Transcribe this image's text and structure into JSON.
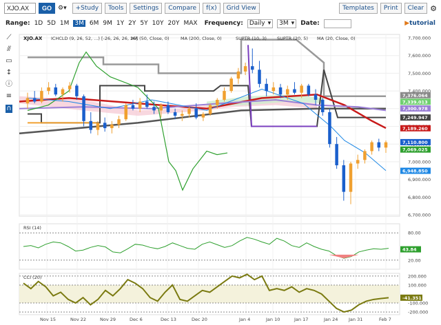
{
  "toolbar": {
    "symbol": "XJO.AX",
    "go": "GO",
    "buttons": [
      "+Study",
      "Tools",
      "Settings",
      "Compare",
      "f(x)",
      "Grid View"
    ],
    "right_buttons": [
      "Templates",
      "Print",
      "Clear"
    ]
  },
  "rangebar": {
    "range_label": "Range:",
    "ranges": [
      "1D",
      "5D",
      "1M",
      "3M",
      "6M",
      "9M",
      "1Y",
      "2Y",
      "5Y",
      "10Y",
      "20Y",
      "MAX"
    ],
    "active_range": "3M",
    "frequency_label": "Frequency:",
    "frequency_value": "Daily",
    "interval_value": "3M",
    "date_label": "Date:",
    "tutorial": "tutorial"
  },
  "legend": {
    "symbol": "XJO.AX",
    "items": [
      "ICHCLD (9, 26, 52, ...) [-26, 26, 26, 26]",
      "MA (50, Close, 0)",
      "MA (200, Close, 0)",
      "SUPTR (10, 3)",
      "SUPTR (20, 5)",
      "MA (20, Close, 0)"
    ]
  },
  "panes": {
    "rsi_label": "RSI (14)",
    "cci_label": "CCI (20)"
  },
  "chart_data": {
    "type": "line",
    "price_axis_ticks": [
      "7,700.000",
      "7,600.000",
      "7,500.000",
      "7,400.000",
      "7,300.000",
      "7,200.000",
      "7,100.000",
      "7,000.000",
      "6,900.000",
      "6,800.000",
      "6,700.000"
    ],
    "price_flags": [
      {
        "value": "7,376.064",
        "color": "#8a8a8a"
      },
      {
        "value": "7,339.013",
        "color": "#6fcf6f"
      },
      {
        "value": "7,300.978",
        "color": "#9b7fd6"
      },
      {
        "value": "7,249.947",
        "color": "#444444"
      },
      {
        "value": "7,189.260",
        "color": "#c81a1a"
      },
      {
        "value": "7,110.800",
        "color": "#1a5fcc"
      },
      {
        "value": "7,069.025",
        "color": "#2ea02e"
      },
      {
        "value": "6,948.850",
        "color": "#1e88e5"
      }
    ],
    "rsi_ticks": [
      "80.00",
      "20.00"
    ],
    "rsi_flag": "43.84",
    "cci_ticks": [
      "200.000",
      "100.000",
      "-100.000",
      "-200.000"
    ],
    "cci_flag": "-41.351",
    "x_labels": [
      "Nov 15",
      "Nov 22",
      "Nov 29",
      "Dec 6",
      "Dec 13",
      "Dec 20",
      "Jan 4",
      "Jan 10",
      "Jan 17",
      "Jan 24",
      "Jan 31",
      "Feb 7"
    ],
    "candles": [
      [
        7330,
        7390,
        7300,
        7360
      ],
      [
        7360,
        7400,
        7330,
        7340
      ],
      [
        7340,
        7420,
        7330,
        7400
      ],
      [
        7400,
        7450,
        7380,
        7420
      ],
      [
        7420,
        7440,
        7370,
        7380
      ],
      [
        7380,
        7420,
        7340,
        7410
      ],
      [
        7410,
        7450,
        7390,
        7430
      ],
      [
        7430,
        7440,
        7350,
        7370
      ],
      [
        7370,
        7380,
        7200,
        7230
      ],
      [
        7230,
        7280,
        7160,
        7180
      ],
      [
        7180,
        7230,
        7150,
        7220
      ],
      [
        7220,
        7250,
        7170,
        7190
      ],
      [
        7190,
        7230,
        7160,
        7210
      ],
      [
        7210,
        7260,
        7190,
        7240
      ],
      [
        7240,
        7330,
        7230,
        7320
      ],
      [
        7320,
        7350,
        7290,
        7300
      ],
      [
        7300,
        7360,
        7280,
        7340
      ],
      [
        7340,
        7380,
        7300,
        7310
      ],
      [
        7310,
        7340,
        7270,
        7290
      ],
      [
        7290,
        7330,
        7250,
        7320
      ],
      [
        7320,
        7340,
        7270,
        7280
      ],
      [
        7280,
        7300,
        7240,
        7260
      ],
      [
        7260,
        7290,
        7230,
        7270
      ],
      [
        7270,
        7310,
        7250,
        7300
      ],
      [
        7300,
        7330,
        7240,
        7250
      ],
      [
        7250,
        7280,
        7230,
        7270
      ],
      [
        7270,
        7330,
        7260,
        7320
      ],
      [
        7320,
        7360,
        7300,
        7350
      ],
      [
        7350,
        7420,
        7340,
        7400
      ],
      [
        7400,
        7480,
        7390,
        7470
      ],
      [
        7470,
        7530,
        7440,
        7510
      ],
      [
        7510,
        7560,
        7490,
        7540
      ],
      [
        7540,
        7640,
        7500,
        7520
      ],
      [
        7520,
        7570,
        7420,
        7440
      ],
      [
        7440,
        7470,
        7370,
        7400
      ],
      [
        7400,
        7450,
        7380,
        7420
      ],
      [
        7420,
        7440,
        7360,
        7380
      ],
      [
        7380,
        7430,
        7350,
        7410
      ],
      [
        7410,
        7450,
        7380,
        7390
      ],
      [
        7390,
        7440,
        7360,
        7430
      ],
      [
        7430,
        7440,
        7370,
        7380
      ],
      [
        7380,
        7410,
        7320,
        7350
      ],
      [
        7350,
        7360,
        7260,
        7280
      ],
      [
        7280,
        7300,
        7080,
        7100
      ],
      [
        7100,
        7140,
        6960,
        6980
      ],
      [
        6980,
        7010,
        6780,
        6830
      ],
      [
        6830,
        7000,
        6760,
        6990
      ],
      [
        6990,
        7040,
        6960,
        7010
      ],
      [
        7010,
        7070,
        6990,
        7060
      ],
      [
        7060,
        7120,
        7040,
        7110
      ],
      [
        7110,
        7130,
        7060,
        7080
      ],
      [
        7080,
        7120,
        7050,
        7110
      ]
    ]
  }
}
